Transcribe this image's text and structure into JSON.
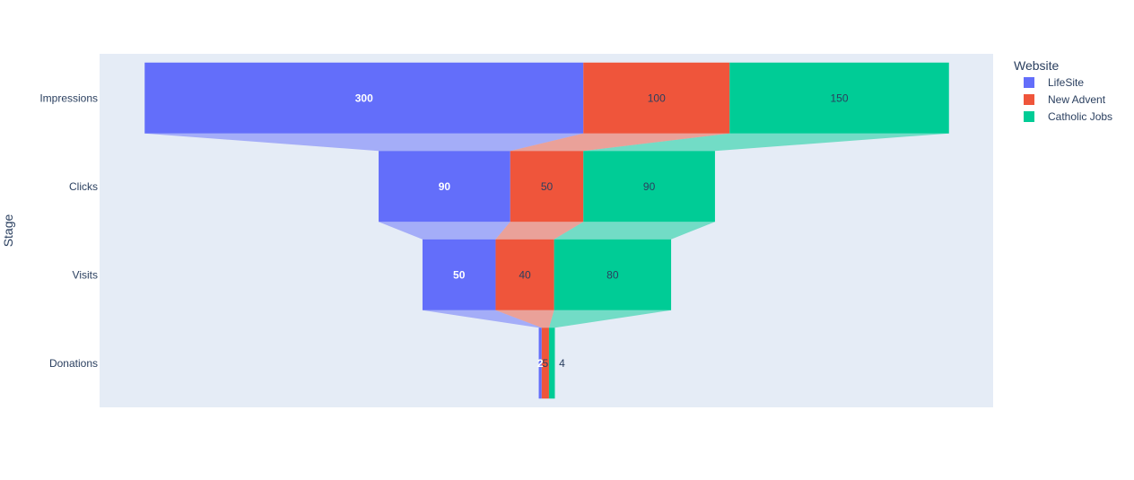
{
  "chart_data": {
    "type": "funnel",
    "title": "",
    "xlabel": "",
    "ylabel": "Stage",
    "legend": {
      "title": "Website",
      "placement": "top-right"
    },
    "categories": [
      "Impressions",
      "Clicks",
      "Visits",
      "Donations"
    ],
    "series": [
      {
        "name": "LifeSite",
        "color": "#636efa",
        "label_color": "#ffffff",
        "values": [
          300,
          90,
          50,
          2
        ]
      },
      {
        "name": "New Advent",
        "color": "#ef553b",
        "label_color": "#2a3f5f",
        "values": [
          100,
          50,
          40,
          5
        ]
      },
      {
        "name": "Catholic Jobs",
        "color": "#00cc96",
        "label_color": "#2a3f5f",
        "values": [
          150,
          90,
          80,
          4
        ]
      }
    ],
    "plot_background": "#e5ecf6",
    "grid": false
  }
}
